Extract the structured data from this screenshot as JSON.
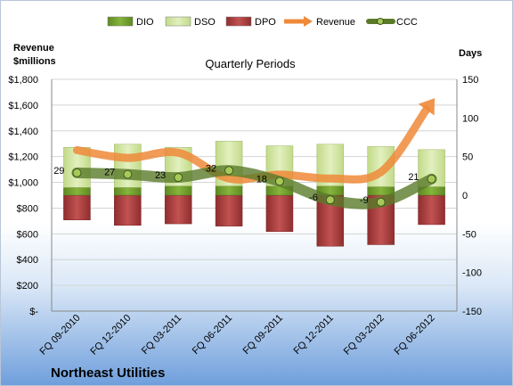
{
  "company_name": "Northeast Utilities",
  "chart_data": {
    "type": "bar",
    "title": "Quarterly Periods",
    "categories": [
      "FQ 09-2010",
      "FQ 12-2010",
      "FQ 03-2011",
      "FQ 06-2011",
      "FQ 09-2011",
      "FQ 12-2011",
      "FQ 03-2012",
      "FQ 06-2012"
    ],
    "left_axis_label": [
      "Revenue",
      "$millions"
    ],
    "right_axis_label": "Days",
    "left_ticks": [
      "$-",
      "$200",
      "$400",
      "$600",
      "$800",
      "$1,000",
      "$1,200",
      "$1,400",
      "$1,600",
      "$1,800"
    ],
    "right_ticks": [
      "-150",
      "-100",
      "-50",
      "0",
      "50",
      "100",
      "150"
    ],
    "ylim_left": [
      0,
      1800
    ],
    "ylim_right": [
      -150,
      150
    ],
    "legend": [
      "DIO",
      "DSO",
      "DPO",
      "Revenue",
      "CCC"
    ],
    "legend_position": "top",
    "colors": {
      "DIO": "#6f9a2a",
      "DSO": "#cde39a",
      "DPO": "#a83838",
      "Revenue": "#ee8a3a",
      "CCC": "#5a7a2a"
    },
    "series": [
      {
        "name": "DIO",
        "values": [
          10,
          10,
          12,
          12,
          12,
          12,
          11,
          11
        ]
      },
      {
        "name": "DSO",
        "values": [
          52,
          56,
          50,
          58,
          52,
          54,
          52,
          48
        ]
      },
      {
        "name": "DPO",
        "values": [
          -32,
          -39,
          -37,
          -40,
          -47,
          -66,
          -64,
          -38
        ]
      },
      {
        "name": "Revenue",
        "values": [
          1250,
          1190,
          1230,
          1030,
          1060,
          1030,
          1080,
          1620
        ]
      },
      {
        "name": "CCC",
        "values": [
          29,
          27,
          23,
          32,
          18,
          -6,
          -9,
          21
        ]
      }
    ],
    "ccc_labels": [
      "29",
      "27",
      "23",
      "32",
      "18",
      "-6",
      "-9",
      "21"
    ]
  }
}
